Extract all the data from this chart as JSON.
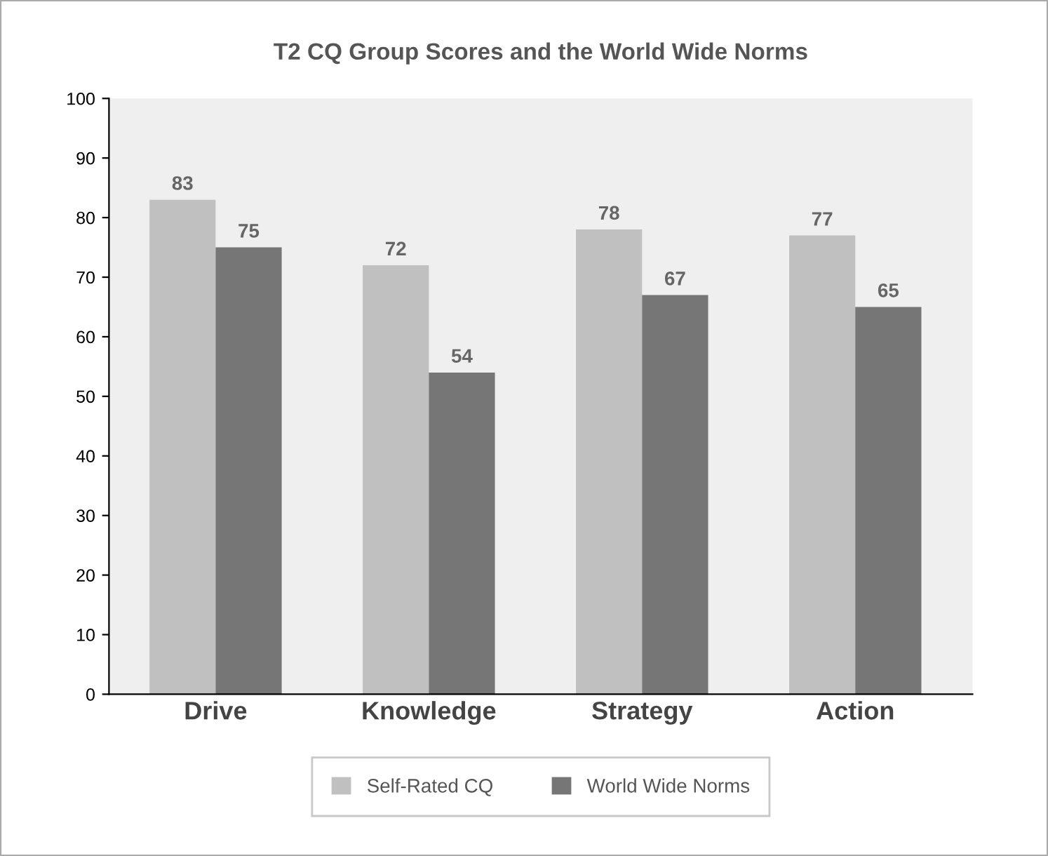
{
  "chart_data": {
    "type": "bar",
    "title": "T2 CQ Group Scores and the World Wide Norms",
    "categories": [
      "Drive",
      "Knowledge",
      "Strategy",
      "Action"
    ],
    "series": [
      {
        "name": "Self-Rated CQ",
        "color": "#c0c0c0",
        "values": [
          83,
          72,
          78,
          77
        ]
      },
      {
        "name": "World Wide Norms",
        "color": "#767676",
        "values": [
          75,
          54,
          67,
          65
        ]
      }
    ],
    "ylim": [
      0,
      100
    ],
    "yticks": [
      0,
      10,
      20,
      30,
      40,
      50,
      60,
      70,
      80,
      90,
      100
    ],
    "grid": false,
    "legend": "bottom",
    "data_labels": true
  }
}
